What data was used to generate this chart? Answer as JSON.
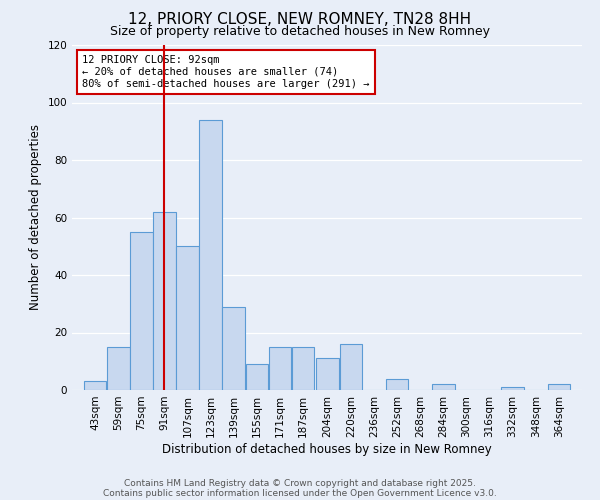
{
  "title": "12, PRIORY CLOSE, NEW ROMNEY, TN28 8HH",
  "subtitle": "Size of property relative to detached houses in New Romney",
  "xlabel": "Distribution of detached houses by size in New Romney",
  "ylabel": "Number of detached properties",
  "bin_labels": [
    "43sqm",
    "59sqm",
    "75sqm",
    "91sqm",
    "107sqm",
    "123sqm",
    "139sqm",
    "155sqm",
    "171sqm",
    "187sqm",
    "204sqm",
    "220sqm",
    "236sqm",
    "252sqm",
    "268sqm",
    "284sqm",
    "300sqm",
    "316sqm",
    "332sqm",
    "348sqm",
    "364sqm"
  ],
  "bar_values": [
    3,
    15,
    55,
    62,
    50,
    94,
    29,
    9,
    15,
    15,
    11,
    16,
    0,
    4,
    0,
    2,
    0,
    0,
    1,
    0,
    2
  ],
  "bin_centers": [
    43,
    59,
    75,
    91,
    107,
    123,
    139,
    155,
    171,
    187,
    204,
    220,
    236,
    252,
    268,
    284,
    300,
    316,
    332,
    348,
    364
  ],
  "bin_width": 16,
  "bar_color": "#c8d8ef",
  "bar_edge_color": "#5b9bd5",
  "vline_x": 91,
  "vline_color": "#cc0000",
  "ylim": [
    0,
    120
  ],
  "yticks": [
    0,
    20,
    40,
    60,
    80,
    100,
    120
  ],
  "annotation_title": "12 PRIORY CLOSE: 92sqm",
  "annotation_line1": "← 20% of detached houses are smaller (74)",
  "annotation_line2": "80% of semi-detached houses are larger (291) →",
  "annotation_box_color": "#ffffff",
  "annotation_box_edge": "#cc0000",
  "footer1": "Contains HM Land Registry data © Crown copyright and database right 2025.",
  "footer2": "Contains public sector information licensed under the Open Government Licence v3.0.",
  "bg_color": "#e8eef8",
  "plot_bg_color": "#e8eef8",
  "grid_color": "#ffffff",
  "title_fontsize": 11,
  "subtitle_fontsize": 9,
  "axis_label_fontsize": 8.5,
  "tick_fontsize": 7.5,
  "footer_fontsize": 6.5
}
